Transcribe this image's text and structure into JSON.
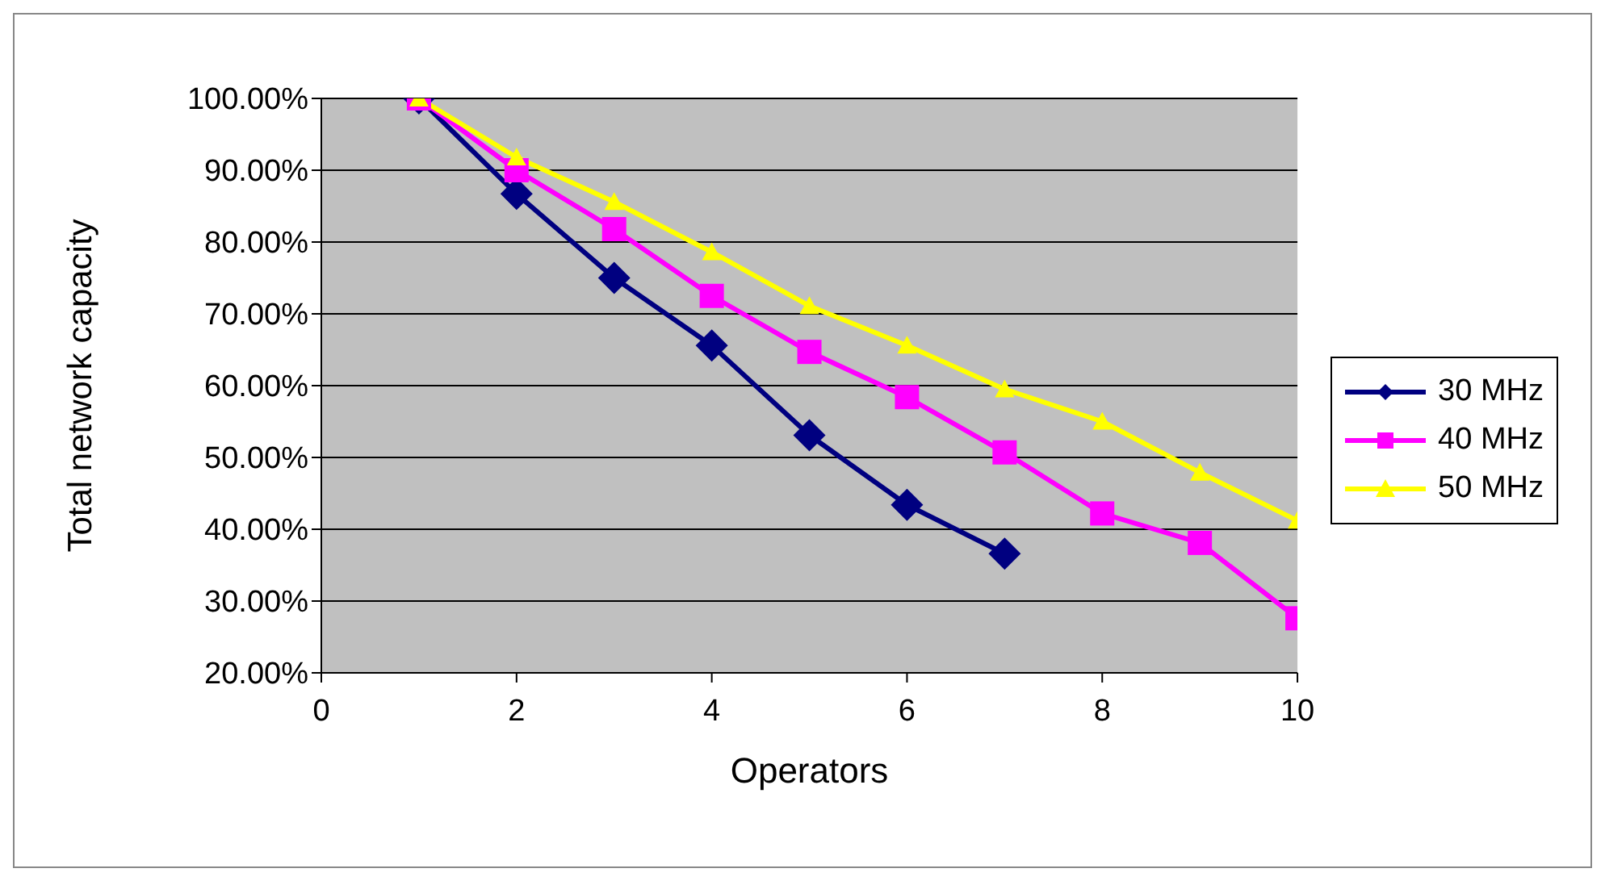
{
  "chart_data": {
    "type": "line",
    "xlabel": "Operators",
    "ylabel": "Total network capacity",
    "xlim": [
      0,
      10
    ],
    "xticks": [
      0,
      2,
      4,
      6,
      8,
      10
    ],
    "ylim": [
      20,
      100
    ],
    "yticks": [
      {
        "value": 20,
        "label": "20.00%"
      },
      {
        "value": 30,
        "label": "30.00%"
      },
      {
        "value": 40,
        "label": "40.00%"
      },
      {
        "value": 50,
        "label": "50.00%"
      },
      {
        "value": 60,
        "label": "60.00%"
      },
      {
        "value": 70,
        "label": "70.00%"
      },
      {
        "value": 80,
        "label": "80.00%"
      },
      {
        "value": 90,
        "label": "90.00%"
      },
      {
        "value": 100,
        "label": "100.00%"
      }
    ],
    "grid": "y",
    "legend": "right",
    "line_style": "solid",
    "series": [
      {
        "name": "30 MHz",
        "color": "#000080",
        "marker": "diamond",
        "x": [
          1,
          2,
          3,
          4,
          5,
          6,
          7
        ],
        "values": [
          100,
          86.7,
          75,
          65.6,
          53.1,
          43.4,
          36.6
        ]
      },
      {
        "name": "40 MHz",
        "color": "#ff00ff",
        "marker": "square",
        "x": [
          1,
          2,
          3,
          4,
          5,
          6,
          7,
          8,
          9,
          10
        ],
        "values": [
          100,
          90,
          81.8,
          72.5,
          64.7,
          58.4,
          50.7,
          42.2,
          38.1,
          27.6
        ]
      },
      {
        "name": "50 MHz",
        "color": "#ffff00",
        "marker": "triangle",
        "x": [
          1,
          2,
          3,
          4,
          5,
          6,
          7,
          8,
          9,
          10
        ],
        "values": [
          100,
          91.8,
          85.6,
          78.6,
          71.1,
          65.6,
          59.5,
          55,
          47.9,
          41.2
        ]
      }
    ]
  }
}
